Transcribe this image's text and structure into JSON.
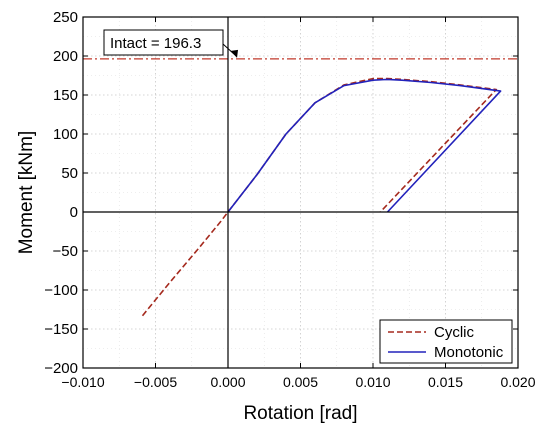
{
  "chart_data": {
    "type": "line",
    "title": "",
    "xlabel": "Rotation [rad]",
    "ylabel": "Moment [kNm]",
    "xlim": [
      -0.01,
      0.02
    ],
    "ylim": [
      -200,
      250
    ],
    "xticks": [
      -0.01,
      -0.005,
      0.0,
      0.005,
      0.01,
      0.015,
      0.02
    ],
    "xtick_labels": [
      "−0.010",
      "−0.005",
      "0.000",
      "0.005",
      "0.010",
      "0.015",
      "0.020"
    ],
    "yticks": [
      -200,
      -150,
      -100,
      -50,
      0,
      50,
      100,
      150,
      200,
      250
    ],
    "ytick_labels": [
      "−200",
      "−150",
      "−100",
      "−50",
      "0",
      "50",
      "100",
      "150",
      "200",
      "250"
    ],
    "grid": true,
    "legend_position": "bottom-right",
    "reference_line": {
      "value": 196.3,
      "label": "Intact = 196.3",
      "color": "#c0392b"
    },
    "series": [
      {
        "name": "Cyclic",
        "style": "dashed",
        "color": "#a52a1e",
        "x": [
          -0.0059,
          -0.004,
          -0.002,
          -0.0005,
          0.0,
          0.002,
          0.004,
          0.006,
          0.008,
          0.01,
          0.011,
          0.012,
          0.014,
          0.016,
          0.0185,
          0.0105
        ],
        "y": [
          -133,
          -90,
          -46,
          -12,
          0,
          48,
          100,
          140,
          163,
          171,
          171,
          170,
          167,
          163,
          157,
          0
        ]
      },
      {
        "name": "Monotonic",
        "style": "solid",
        "color": "#2222bb",
        "x": [
          0.0,
          0.002,
          0.004,
          0.006,
          0.008,
          0.01,
          0.011,
          0.012,
          0.014,
          0.016,
          0.0188,
          0.011
        ],
        "y": [
          0,
          48,
          100,
          140,
          162,
          169,
          170,
          169,
          166,
          162,
          155,
          0
        ]
      }
    ]
  }
}
